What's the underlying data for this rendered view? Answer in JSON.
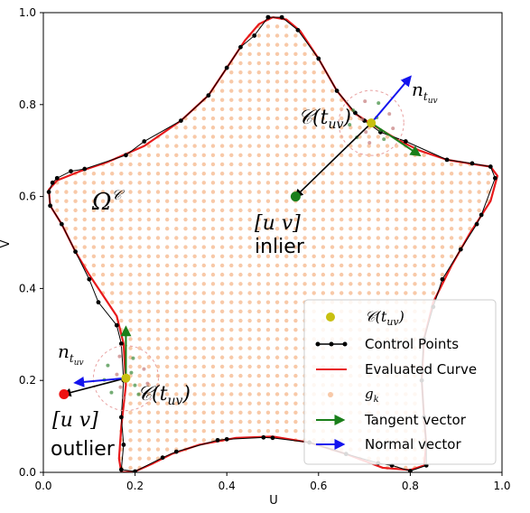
{
  "chart_data": {
    "type": "line",
    "xlabel": "U",
    "ylabel": "V",
    "xlim": [
      0.0,
      1.0
    ],
    "ylim": [
      0.0,
      1.0
    ],
    "x_ticks": [
      "0.0",
      "0.2",
      "0.4",
      "0.6",
      "0.8",
      "1.0"
    ],
    "y_ticks": [
      "0.0",
      "0.2",
      "0.4",
      "0.6",
      "0.8",
      "1.0"
    ],
    "grid": false,
    "legend_position": "lower-right",
    "colors": {
      "curve": "#e8191b",
      "control": "#000000",
      "tangent": "#1a7f1a",
      "normal": "#1414ee",
      "point": "#c8c010",
      "grid": "#f8c9a8",
      "inlier": "#1a7f1a",
      "outlier": "#ee1111"
    },
    "curve_points": [
      [
        0.5,
        0.99
      ],
      [
        0.53,
        0.985
      ],
      [
        0.56,
        0.96
      ],
      [
        0.6,
        0.9
      ],
      [
        0.64,
        0.83
      ],
      [
        0.68,
        0.78
      ],
      [
        0.72,
        0.755
      ],
      [
        0.77,
        0.725
      ],
      [
        0.82,
        0.7
      ],
      [
        0.88,
        0.68
      ],
      [
        0.94,
        0.67
      ],
      [
        0.975,
        0.665
      ],
      [
        0.99,
        0.645
      ],
      [
        0.975,
        0.59
      ],
      [
        0.93,
        0.52
      ],
      [
        0.89,
        0.45
      ],
      [
        0.85,
        0.37
      ],
      [
        0.83,
        0.29
      ],
      [
        0.825,
        0.2
      ],
      [
        0.83,
        0.12
      ],
      [
        0.835,
        0.06
      ],
      [
        0.83,
        0.015
      ],
      [
        0.8,
        0.005
      ],
      [
        0.74,
        0.01
      ],
      [
        0.66,
        0.04
      ],
      [
        0.58,
        0.065
      ],
      [
        0.5,
        0.078
      ],
      [
        0.42,
        0.075
      ],
      [
        0.34,
        0.06
      ],
      [
        0.28,
        0.04
      ],
      [
        0.24,
        0.02
      ],
      [
        0.2,
        0.002
      ],
      [
        0.17,
        0.0
      ],
      [
        0.165,
        0.03
      ],
      [
        0.17,
        0.1
      ],
      [
        0.18,
        0.19
      ],
      [
        0.175,
        0.28
      ],
      [
        0.16,
        0.34
      ],
      [
        0.13,
        0.385
      ],
      [
        0.1,
        0.43
      ],
      [
        0.07,
        0.48
      ],
      [
        0.04,
        0.54
      ],
      [
        0.015,
        0.58
      ],
      [
        0.012,
        0.615
      ],
      [
        0.03,
        0.635
      ],
      [
        0.08,
        0.655
      ],
      [
        0.14,
        0.675
      ],
      [
        0.22,
        0.71
      ],
      [
        0.3,
        0.765
      ],
      [
        0.36,
        0.82
      ],
      [
        0.4,
        0.88
      ],
      [
        0.44,
        0.94
      ],
      [
        0.47,
        0.975
      ],
      [
        0.5,
        0.99
      ]
    ],
    "control_points": [
      [
        0.49,
        0.99
      ],
      [
        0.52,
        0.99
      ],
      [
        0.555,
        0.962
      ],
      [
        0.6,
        0.9
      ],
      [
        0.64,
        0.83
      ],
      [
        0.68,
        0.782
      ],
      [
        0.7,
        0.765
      ],
      [
        0.735,
        0.74
      ],
      [
        0.79,
        0.72
      ],
      [
        0.88,
        0.68
      ],
      [
        0.935,
        0.672
      ],
      [
        0.975,
        0.665
      ],
      [
        0.985,
        0.64
      ],
      [
        0.955,
        0.56
      ],
      [
        0.945,
        0.54
      ],
      [
        0.91,
        0.485
      ],
      [
        0.87,
        0.42
      ],
      [
        0.85,
        0.36
      ],
      [
        0.83,
        0.29
      ],
      [
        0.825,
        0.22
      ],
      [
        0.825,
        0.2
      ],
      [
        0.83,
        0.12
      ],
      [
        0.835,
        0.06
      ],
      [
        0.835,
        0.015
      ],
      [
        0.8,
        0.003
      ],
      [
        0.76,
        0.015
      ],
      [
        0.73,
        0.02
      ],
      [
        0.66,
        0.04
      ],
      [
        0.58,
        0.065
      ],
      [
        0.5,
        0.075
      ],
      [
        0.48,
        0.076
      ],
      [
        0.4,
        0.072
      ],
      [
        0.38,
        0.07
      ],
      [
        0.29,
        0.045
      ],
      [
        0.26,
        0.032
      ],
      [
        0.2,
        0.002
      ],
      [
        0.17,
        0.006
      ],
      [
        0.175,
        0.06
      ],
      [
        0.17,
        0.12
      ],
      [
        0.175,
        0.2
      ],
      [
        0.17,
        0.28
      ],
      [
        0.16,
        0.32
      ],
      [
        0.12,
        0.37
      ],
      [
        0.1,
        0.42
      ],
      [
        0.07,
        0.48
      ],
      [
        0.04,
        0.54
      ],
      [
        0.015,
        0.58
      ],
      [
        0.012,
        0.61
      ],
      [
        0.02,
        0.63
      ],
      [
        0.03,
        0.64
      ],
      [
        0.06,
        0.655
      ],
      [
        0.09,
        0.66
      ],
      [
        0.18,
        0.69
      ],
      [
        0.22,
        0.72
      ],
      [
        0.3,
        0.765
      ],
      [
        0.36,
        0.82
      ],
      [
        0.4,
        0.88
      ],
      [
        0.43,
        0.925
      ],
      [
        0.46,
        0.95
      ],
      [
        0.49,
        0.99
      ]
    ],
    "grid_spacing": 0.02,
    "points": {
      "inlier": {
        "uv": [
          0.55,
          0.6
        ],
        "curve_point": [
          0.715,
          0.76
        ],
        "tangent": [
          0.82,
          0.69
        ],
        "normal": [
          0.8,
          0.86
        ]
      },
      "outlier": {
        "uv": [
          0.045,
          0.17
        ],
        "curve_point": [
          0.18,
          0.205
        ],
        "tangent": [
          0.18,
          0.315
        ],
        "normal": [
          0.07,
          0.195
        ]
      }
    }
  },
  "labels": {
    "region": "Ω",
    "region_sup": "𝒞",
    "curve_point_top": "𝒞(t",
    "curve_point_sub": "uv",
    "curve_point_close": ")",
    "normal_top_main": "n",
    "normal_top_sub": "t",
    "normal_top_subsub": "uv",
    "inlier_uv": "[u v]",
    "inlier_word": "inlier",
    "curve_point_bottom": "𝒞(t",
    "curve_point_bottom_sub": "uv",
    "curve_point_bottom_close": ")",
    "normal_bottom_main": "n",
    "normal_bottom_sub": "t",
    "normal_bottom_subsub": "uv",
    "outlier_uv": "[u v]",
    "outlier_word": "outlier"
  },
  "legend": {
    "items": [
      {
        "label_main": "𝒞(t",
        "label_sub": "uv",
        "label_close": ")",
        "kind": "point"
      },
      {
        "label": "Control Points",
        "kind": "control"
      },
      {
        "label": "Evaluated Curve",
        "kind": "curve"
      },
      {
        "label_main": "g",
        "label_sub": "k",
        "kind": "grid"
      },
      {
        "label": "Tangent vector",
        "kind": "tangent"
      },
      {
        "label": "Normal vector",
        "kind": "normal"
      }
    ]
  }
}
